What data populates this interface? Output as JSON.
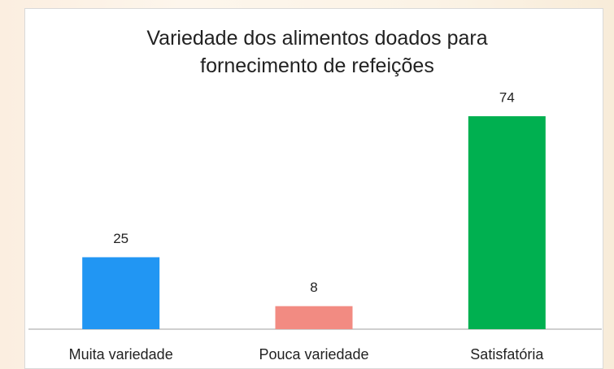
{
  "chart_data": {
    "type": "bar",
    "title": "Variedade dos alimentos doados para fornecimento de refeições",
    "categories": [
      "Muita variedade",
      "Pouca variedade",
      "Satisfatória"
    ],
    "values": [
      25,
      8,
      74
    ],
    "colors": [
      "#2196f3",
      "#f28b82",
      "#00b050"
    ]
  }
}
